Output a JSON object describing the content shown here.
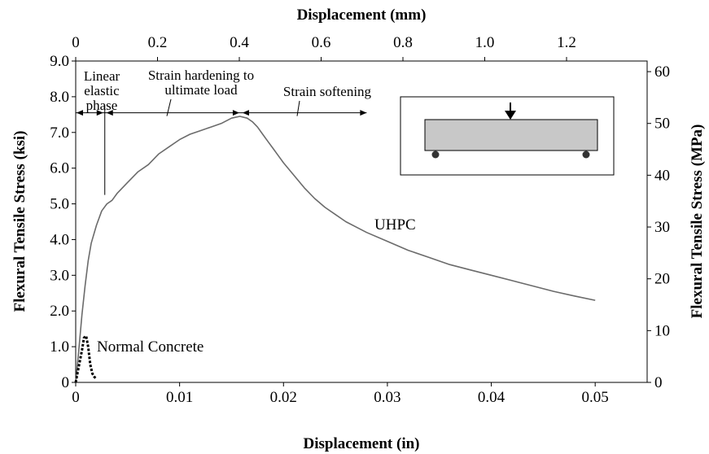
{
  "chart_data": {
    "type": "line",
    "title": "",
    "xlabel": "Displacement (in)",
    "x2label": "Displacement (mm)",
    "ylabel": "Flexural Tensile Stress (ksi)",
    "y2label": "Flexural Tensile Stress (MPa)",
    "xlim": [
      0,
      0.055
    ],
    "ylim": [
      0,
      9.0
    ],
    "x2lim": [
      0,
      1.397
    ],
    "y2lim": [
      0,
      62.05
    ],
    "x_ticks": [
      "0",
      "0.01",
      "0.02",
      "0.03",
      "0.04",
      "0.05"
    ],
    "x_tick_values": [
      0,
      0.01,
      0.02,
      0.03,
      0.04,
      0.05
    ],
    "x2_ticks": [
      "0",
      "0.2",
      "0.4",
      "0.6",
      "0.8",
      "1.0",
      "1.2"
    ],
    "x2_tick_values": [
      0,
      0.2,
      0.4,
      0.6,
      0.8,
      1.0,
      1.2
    ],
    "y_ticks": [
      "0",
      "1.0",
      "2.0",
      "3.0",
      "4.0",
      "5.0",
      "6.0",
      "7.0",
      "8.0",
      "9.0"
    ],
    "y_tick_values": [
      0,
      1,
      2,
      3,
      4,
      5,
      6,
      7,
      8,
      9
    ],
    "y2_ticks": [
      "0",
      "10",
      "20",
      "30",
      "40",
      "50",
      "60"
    ],
    "y2_tick_values": [
      0,
      10,
      20,
      30,
      40,
      50,
      60
    ],
    "grid": false,
    "series": [
      {
        "name": "UHPC",
        "style": "solid",
        "color": "#6b6b6b",
        "x": [
          0,
          0.0003,
          0.0006,
          0.0009,
          0.0012,
          0.0015,
          0.002,
          0.0025,
          0.003,
          0.0035,
          0.004,
          0.005,
          0.006,
          0.007,
          0.008,
          0.009,
          0.01,
          0.011,
          0.012,
          0.013,
          0.014,
          0.015,
          0.0158,
          0.0165,
          0.017,
          0.0175,
          0.018,
          0.0185,
          0.019,
          0.0195,
          0.02,
          0.021,
          0.022,
          0.023,
          0.024,
          0.025,
          0.026,
          0.027,
          0.028,
          0.03,
          0.032,
          0.034,
          0.036,
          0.038,
          0.04,
          0.042,
          0.044,
          0.046,
          0.048,
          0.05
        ],
        "y": [
          0,
          0.9,
          1.9,
          2.7,
          3.4,
          3.9,
          4.4,
          4.8,
          5.0,
          5.1,
          5.3,
          5.6,
          5.9,
          6.1,
          6.4,
          6.6,
          6.8,
          6.95,
          7.05,
          7.15,
          7.25,
          7.4,
          7.45,
          7.4,
          7.3,
          7.15,
          6.95,
          6.75,
          6.55,
          6.35,
          6.15,
          5.8,
          5.45,
          5.15,
          4.9,
          4.7,
          4.5,
          4.35,
          4.2,
          3.95,
          3.7,
          3.5,
          3.3,
          3.15,
          3.0,
          2.85,
          2.7,
          2.55,
          2.42,
          2.3
        ]
      },
      {
        "name": "Normal Concrete",
        "style": "dashed",
        "color": "#000000",
        "x": [
          0,
          0.0003,
          0.0006,
          0.0008,
          0.001,
          0.0012,
          0.0014,
          0.0016,
          0.0018,
          0.002
        ],
        "y": [
          0,
          0.45,
          0.9,
          1.25,
          1.3,
          1.0,
          0.5,
          0.25,
          0.15,
          0.1
        ]
      }
    ],
    "annotations": {
      "phase1": [
        "Linear",
        "elastic",
        "phase"
      ],
      "phase2": [
        "Strain hardening to",
        "ultimate load"
      ],
      "phase3": "Strain softening",
      "uhpc_label": "UHPC",
      "nc_label": "Normal Concrete"
    },
    "phase_boundaries_x": [
      0,
      0.0028,
      0.0159,
      0.028
    ],
    "phase_arrow_y": 7.55,
    "phase_marker_bottom_y": 5.25
  }
}
